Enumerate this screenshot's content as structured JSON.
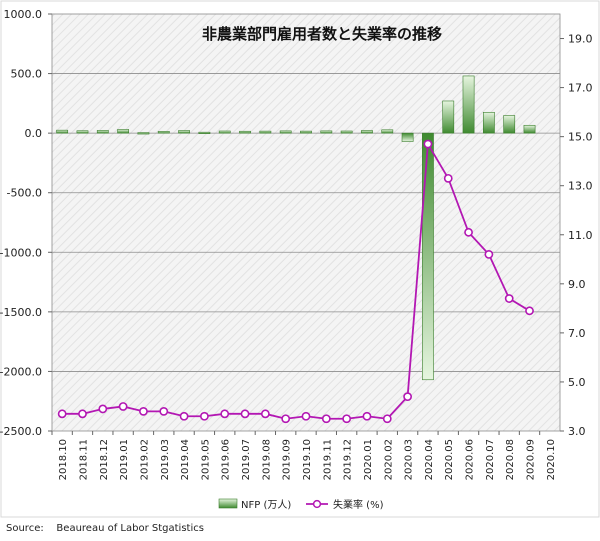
{
  "chart_data": {
    "type": "bar+line",
    "title": "非農業部門雇用者数と失業率の推移",
    "categories": [
      "2018.10",
      "2018.11",
      "2018.12",
      "2019.01",
      "2019.02",
      "2019.03",
      "2019.04",
      "2019.05",
      "2019.06",
      "2019.07",
      "2019.08",
      "2019.09",
      "2019.10",
      "2019.11",
      "2019.12",
      "2020.01",
      "2020.02",
      "2020.03",
      "2020.04",
      "2020.05",
      "2020.06",
      "2020.07",
      "2020.08",
      "2020.09",
      "2020.10"
    ],
    "left_axis": {
      "ylim": [
        -2500,
        1000
      ],
      "ticks": [
        -2500,
        -2000,
        -1500,
        -1000,
        -500,
        0,
        500,
        1000
      ],
      "tick_labels": [
        "-2500.0",
        "-2000.0",
        "-1500.0",
        "-1000.0",
        "-500.0",
        "0.0",
        "500.0",
        "1000.0"
      ]
    },
    "right_axis": {
      "ylim": [
        3,
        20
      ],
      "ticks": [
        3,
        5,
        7,
        9,
        11,
        13,
        15,
        17,
        19
      ],
      "tick_labels": [
        "3.0",
        "5.0",
        "7.0",
        "9.0",
        "11.0",
        "13.0",
        "15.0",
        "17.0",
        "19.0"
      ]
    },
    "series": [
      {
        "name": "NFP (万人)",
        "kind": "bar",
        "axis": "left",
        "values": [
          25,
          20,
          23,
          31,
          5,
          15,
          22,
          8,
          18,
          16,
          17,
          19,
          17,
          19,
          18,
          22,
          28,
          -70,
          -2070,
          270,
          480,
          175,
          148,
          66,
          null
        ]
      },
      {
        "name": "失業率 (%)",
        "kind": "line",
        "axis": "right",
        "values": [
          3.7,
          3.7,
          3.9,
          4.0,
          3.8,
          3.8,
          3.6,
          3.6,
          3.7,
          3.7,
          3.7,
          3.5,
          3.6,
          3.5,
          3.5,
          3.6,
          3.5,
          4.4,
          14.7,
          13.3,
          11.1,
          10.2,
          8.4,
          7.9,
          null
        ]
      }
    ],
    "colors": {
      "bar": "#4f9a3f",
      "line": "#b317b3",
      "plot_bg": "#f2f2f2",
      "grid": "#8c8c8c"
    },
    "grid": true,
    "legend_position": "bottom"
  },
  "source_note": "Source:    Beaureau of Labor Stgatistics"
}
